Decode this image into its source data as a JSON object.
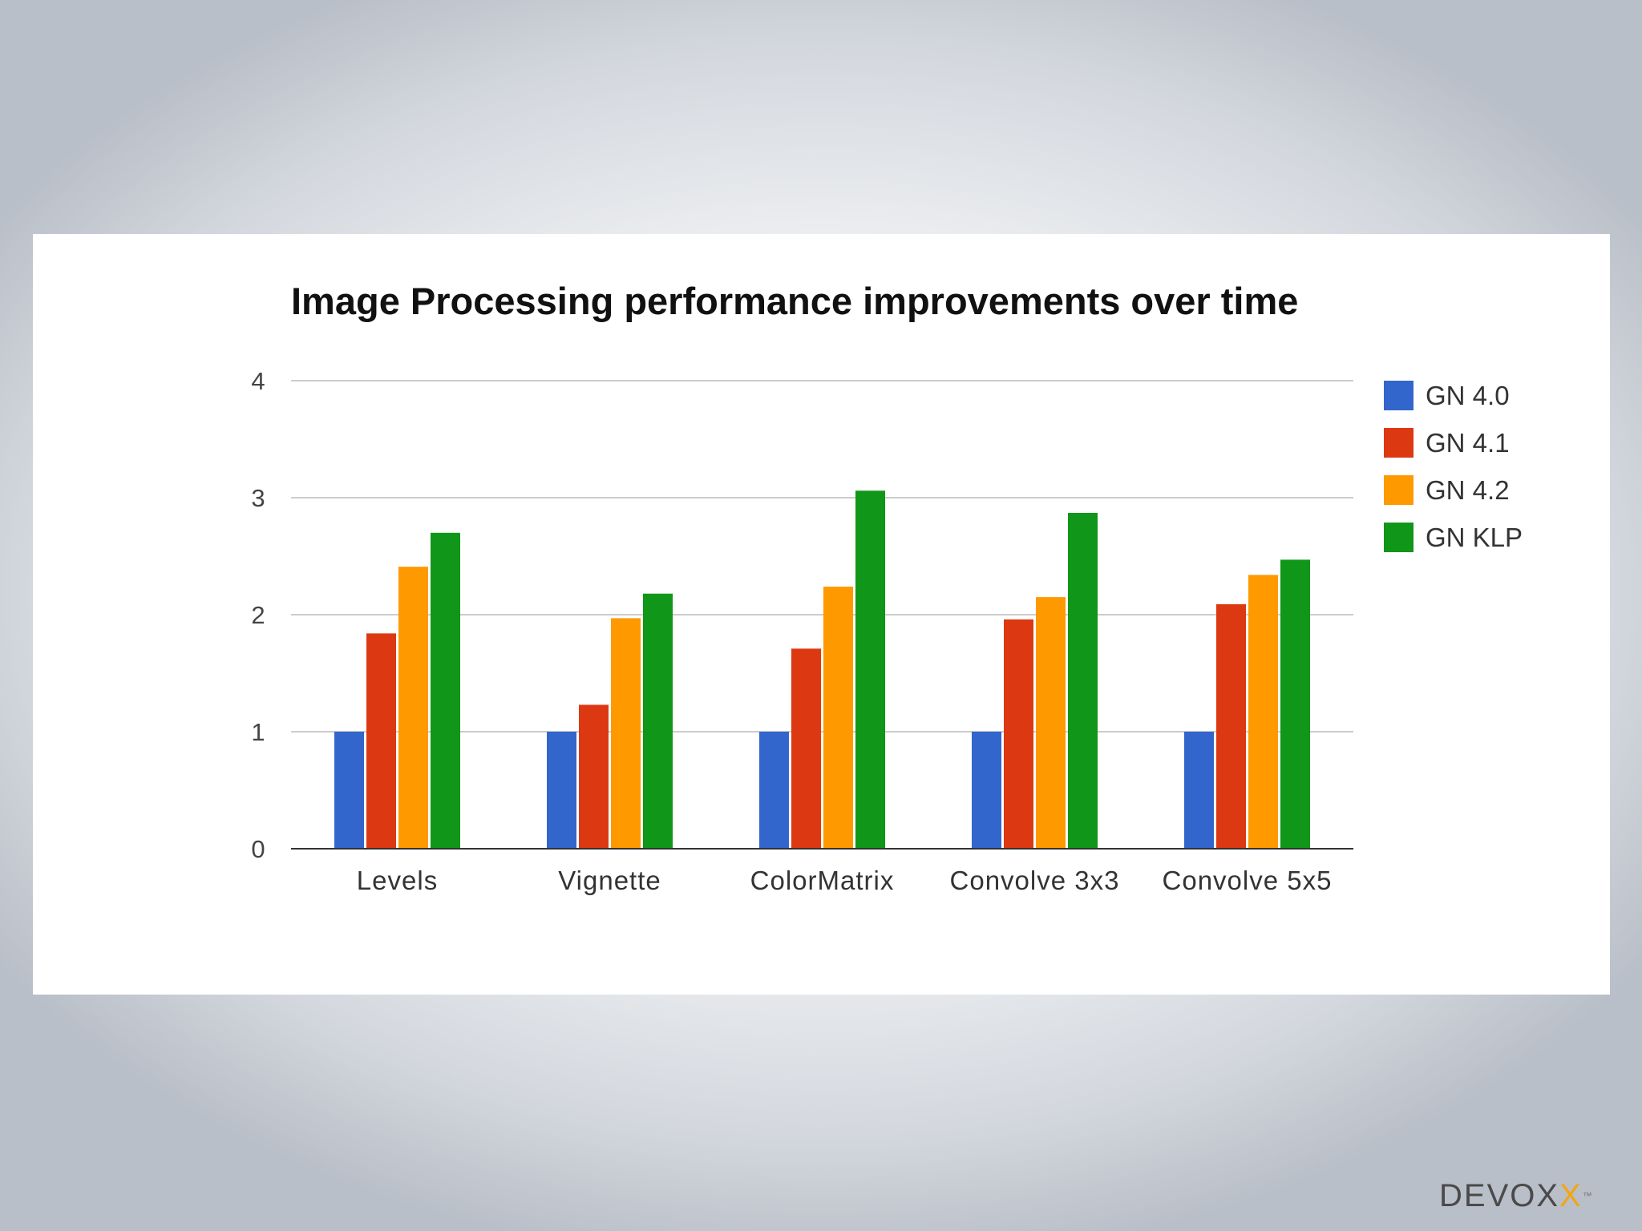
{
  "logo": {
    "text": "DEVOX",
    "accent": "X",
    "tm": "™"
  },
  "chart_data": {
    "type": "bar",
    "title": "Image Processing performance improvements over time",
    "categories": [
      "Levels",
      "Vignette",
      "ColorMatrix",
      "Convolve 3x3",
      "Convolve 5x5"
    ],
    "series": [
      {
        "name": "GN 4.0",
        "color": "#3366cc",
        "values": [
          1.0,
          1.0,
          1.0,
          1.0,
          1.0
        ]
      },
      {
        "name": "GN 4.1",
        "color": "#dc3912",
        "values": [
          1.84,
          1.23,
          1.71,
          1.96,
          2.09
        ]
      },
      {
        "name": "GN 4.2",
        "color": "#ff9900",
        "values": [
          2.41,
          1.97,
          2.24,
          2.15,
          2.34
        ]
      },
      {
        "name": "GN KLP",
        "color": "#109618",
        "values": [
          2.7,
          2.18,
          3.06,
          2.87,
          2.47
        ]
      }
    ],
    "ylim": [
      0,
      4
    ],
    "yticks": [
      "0",
      "1",
      "2",
      "3",
      "4"
    ],
    "grid": true,
    "legend": "right",
    "xlabel": "",
    "ylabel": ""
  }
}
